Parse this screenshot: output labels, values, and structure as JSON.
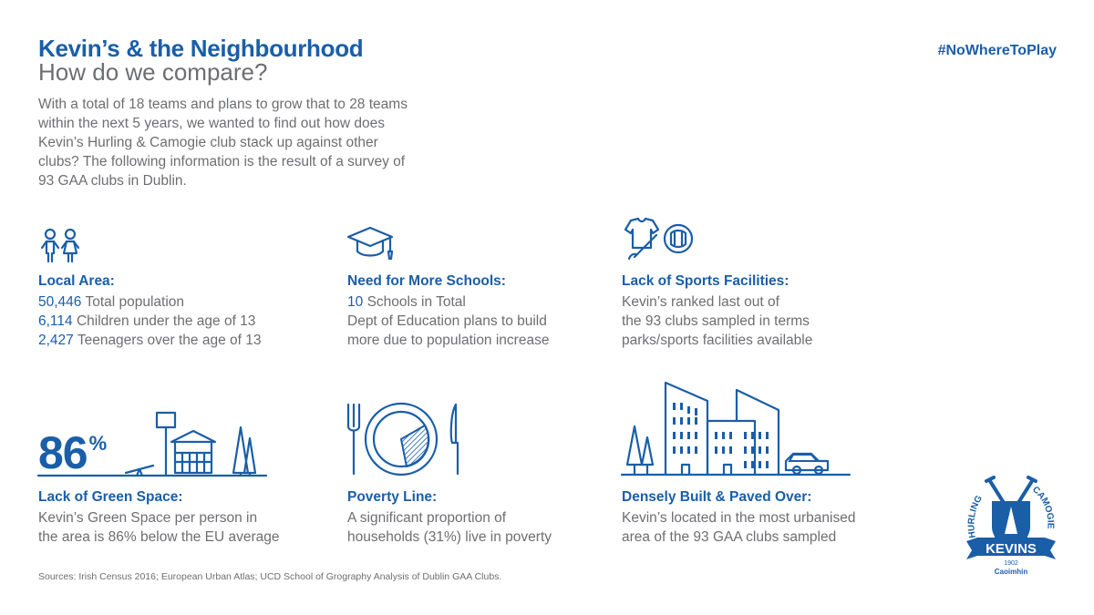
{
  "header": {
    "title": "Kevin’s & the Neighbourhood",
    "subtitle": "How do we compare?",
    "hashtag": "#NoWhereToPlay"
  },
  "intro": "With a total of 18 teams and plans to grow that to 28 teams within the next 5 years, we wanted to find out how does Kevin’s Hurling & Camogie club stack up against other clubs? The following information is the result of a survey of 93 GAA clubs in Dublin.",
  "local_area": {
    "title": "Local Area:",
    "stats": [
      {
        "value": "50,446",
        "label": "Total population"
      },
      {
        "value": "6,114",
        "label": "Children under the age of 13"
      },
      {
        "value": "2,427",
        "label": "Teenagers over the age of 13"
      }
    ]
  },
  "schools": {
    "title": "Need for More Schools:",
    "count": "10",
    "count_label": "Schools in Total",
    "lines": [
      "Dept of Education plans to build",
      "more due to population increase"
    ]
  },
  "sports": {
    "title": "Lack of Sports Facilities:",
    "lines": [
      "Kevin’s ranked last out of",
      "the 93 clubs sampled in terms",
      "parks/sports facilities available"
    ]
  },
  "green_space": {
    "value": "86",
    "unit": "%",
    "title": "Lack of Green Space:",
    "lines": [
      "Kevin’s Green Space per person in",
      "the area is 86% below the EU average"
    ]
  },
  "poverty": {
    "title": "Poverty Line:",
    "lines": [
      "A significant proportion of",
      "households (31%) live in poverty"
    ]
  },
  "dense": {
    "title": "Densely Built & Paved Over:",
    "lines": [
      "Kevin’s located in the most urbanised",
      "area of the 93 GAA clubs sampled"
    ]
  },
  "logo": {
    "left": "HURLING",
    "right": "CAMOGIE",
    "name": "KEVINS",
    "year": "1902",
    "irish": "Caoimhin"
  },
  "sources": "Sources: Irish Census 2016; European Urban Atlas; UCD School of Grography Analysis of Dublin GAA Clubs.",
  "colors": {
    "accent": "#1a5ea8",
    "text": "#6d6e71"
  }
}
